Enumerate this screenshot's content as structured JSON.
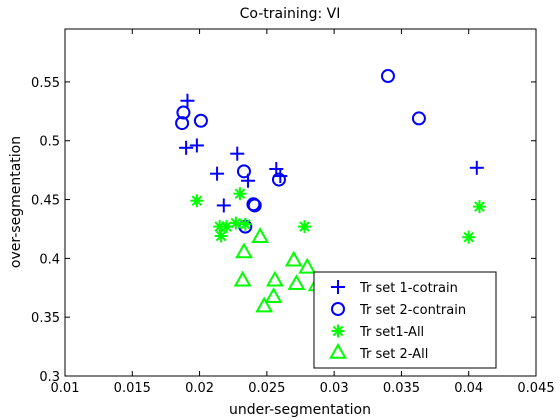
{
  "chart_data": {
    "type": "scatter",
    "title": "Co-training: VI",
    "xlabel": "under-segmentation",
    "ylabel": "over-segmentation",
    "xlim": [
      0.01,
      0.045
    ],
    "ylim": [
      0.3,
      0.595
    ],
    "xticks": [
      0.01,
      0.015,
      0.02,
      0.025,
      0.03,
      0.035,
      0.04,
      0.045
    ],
    "xtick_labels": [
      "0.01",
      "0.015",
      "0.02",
      "0.025",
      "0.03",
      "0.035",
      "0.04",
      "0.045"
    ],
    "yticks": [
      0.3,
      0.35,
      0.4,
      0.45,
      0.5,
      0.55
    ],
    "ytick_labels": [
      "0.3",
      "0.35",
      "0.4",
      "0.45",
      "0.5",
      "0.55"
    ],
    "grid": false,
    "legend_position": "bottom-right",
    "series": [
      {
        "name": "Tr set 1-cotrain",
        "marker": "plus",
        "color": "#0000ff",
        "points": [
          [
            0.0191,
            0.534
          ],
          [
            0.019,
            0.494
          ],
          [
            0.0198,
            0.496
          ],
          [
            0.0213,
            0.472
          ],
          [
            0.0218,
            0.445
          ],
          [
            0.0228,
            0.489
          ],
          [
            0.0236,
            0.466
          ],
          [
            0.0257,
            0.476
          ],
          [
            0.026,
            0.47
          ],
          [
            0.0406,
            0.477
          ]
        ]
      },
      {
        "name": "Tr set 2-contrain",
        "marker": "circle",
        "color": "#0000ff",
        "points": [
          [
            0.0187,
            0.515
          ],
          [
            0.0188,
            0.524
          ],
          [
            0.0201,
            0.517
          ],
          [
            0.0233,
            0.474
          ],
          [
            0.0234,
            0.427
          ],
          [
            0.0241,
            0.445
          ],
          [
            0.024,
            0.446
          ],
          [
            0.0259,
            0.467
          ],
          [
            0.034,
            0.555
          ],
          [
            0.0363,
            0.519
          ]
        ]
      },
      {
        "name": "Tr set1-All",
        "marker": "asterisk",
        "color": "#00ff00",
        "points": [
          [
            0.0198,
            0.449
          ],
          [
            0.0215,
            0.427
          ],
          [
            0.0216,
            0.419
          ],
          [
            0.022,
            0.427
          ],
          [
            0.0227,
            0.43
          ],
          [
            0.023,
            0.455
          ],
          [
            0.0234,
            0.429
          ],
          [
            0.0278,
            0.427
          ],
          [
            0.04,
            0.418
          ],
          [
            0.0408,
            0.444
          ]
        ]
      },
      {
        "name": "Tr set 2-All",
        "marker": "triangle",
        "color": "#00ff00",
        "points": [
          [
            0.0233,
            0.405
          ],
          [
            0.0232,
            0.381
          ],
          [
            0.0245,
            0.418
          ],
          [
            0.0248,
            0.359
          ],
          [
            0.0255,
            0.367
          ],
          [
            0.0256,
            0.381
          ],
          [
            0.027,
            0.398
          ],
          [
            0.0272,
            0.378
          ],
          [
            0.028,
            0.392
          ],
          [
            0.0287,
            0.377
          ]
        ]
      }
    ]
  }
}
